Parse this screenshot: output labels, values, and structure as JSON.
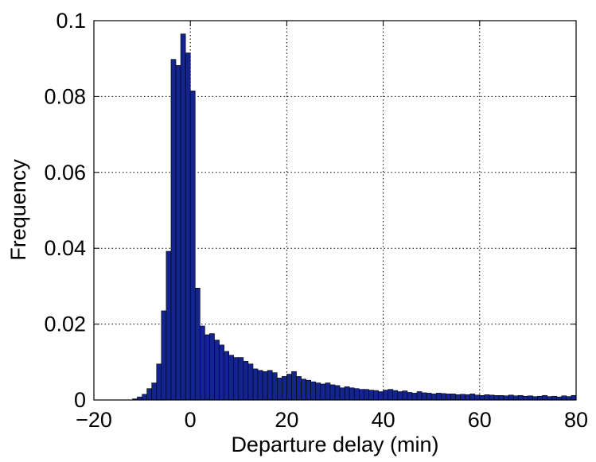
{
  "chart_data": {
    "type": "histogram",
    "xlabel": "Departure delay (min)",
    "ylabel": "Frequency",
    "bins": [
      -12,
      -11,
      -10,
      -9,
      -8,
      -7,
      -6,
      -5,
      -4,
      -3,
      -2,
      -1,
      0,
      1,
      2,
      3,
      4,
      5,
      6,
      7,
      8,
      9,
      10,
      11,
      12,
      13,
      14,
      15,
      16,
      17,
      18,
      19,
      20,
      21,
      22,
      23,
      24,
      25,
      26,
      27,
      28,
      29,
      30,
      31,
      32,
      33,
      34,
      35,
      36,
      37,
      38,
      39,
      40,
      41,
      42,
      43,
      44,
      45,
      46,
      47,
      48,
      49,
      50,
      51,
      52,
      53,
      54,
      55,
      56,
      57,
      58,
      59,
      60,
      61,
      62,
      63,
      64,
      65,
      66,
      67,
      68,
      69,
      70,
      71,
      72,
      73,
      74,
      75,
      76,
      77,
      78,
      79,
      80
    ],
    "values": [
      0.0003,
      0.0008,
      0.0015,
      0.003,
      0.0045,
      0.0095,
      0.0235,
      0.0392,
      0.0898,
      0.0882,
      0.0965,
      0.0915,
      0.0815,
      0.0295,
      0.0195,
      0.0172,
      0.0175,
      0.0158,
      0.0145,
      0.0128,
      0.0118,
      0.0112,
      0.0112,
      0.0102,
      0.0095,
      0.0082,
      0.0078,
      0.0075,
      0.0078,
      0.0072,
      0.0058,
      0.0062,
      0.0068,
      0.0075,
      0.0062,
      0.0055,
      0.0052,
      0.0048,
      0.0045,
      0.0042,
      0.0045,
      0.004,
      0.0038,
      0.0032,
      0.0035,
      0.0032,
      0.003,
      0.0028,
      0.0028,
      0.0026,
      0.0025,
      0.0022,
      0.0026,
      0.0028,
      0.0025,
      0.0022,
      0.0024,
      0.002,
      0.0018,
      0.0022,
      0.0019,
      0.0018,
      0.0016,
      0.0018,
      0.0017,
      0.0016,
      0.0016,
      0.0014,
      0.0015,
      0.0014,
      0.0016,
      0.0013,
      0.0012,
      0.0014,
      0.0013,
      0.0012,
      0.0012,
      0.0011,
      0.0013,
      0.0011,
      0.0012,
      0.001,
      0.0011,
      0.0009,
      0.001,
      0.0012,
      0.0009,
      0.001,
      0.0008,
      0.0011,
      0.0009,
      0.0012
    ],
    "color": "#13248f",
    "xlim": [
      -20,
      80
    ],
    "xticks": [
      {
        "value": -20,
        "label": "−20"
      },
      0,
      20,
      40,
      60,
      80
    ],
    "ylim": [
      0,
      0.1
    ],
    "yticks": [
      0,
      0.02,
      0.04,
      0.06,
      0.08,
      0.1
    ],
    "grid": true
  }
}
